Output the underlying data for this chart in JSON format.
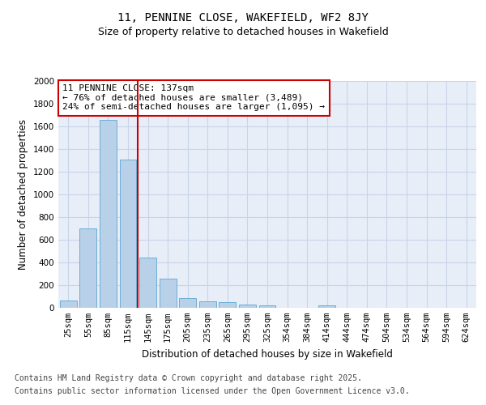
{
  "title_line1": "11, PENNINE CLOSE, WAKEFIELD, WF2 8JY",
  "title_line2": "Size of property relative to detached houses in Wakefield",
  "xlabel": "Distribution of detached houses by size in Wakefield",
  "ylabel": "Number of detached properties",
  "categories": [
    "25sqm",
    "55sqm",
    "85sqm",
    "115sqm",
    "145sqm",
    "175sqm",
    "205sqm",
    "235sqm",
    "265sqm",
    "295sqm",
    "325sqm",
    "354sqm",
    "384sqm",
    "414sqm",
    "444sqm",
    "474sqm",
    "504sqm",
    "534sqm",
    "564sqm",
    "594sqm",
    "624sqm"
  ],
  "values": [
    65,
    700,
    1660,
    1310,
    440,
    255,
    85,
    55,
    50,
    30,
    25,
    0,
    0,
    18,
    0,
    0,
    0,
    0,
    0,
    0,
    0
  ],
  "bar_color": "#b8d0e8",
  "bar_edge_color": "#6baed6",
  "vline_pos": 3.5,
  "vline_color": "#cc0000",
  "annotation_line1": "11 PENNINE CLOSE: 137sqm",
  "annotation_line2": "← 76% of detached houses are smaller (3,489)",
  "annotation_line3": "24% of semi-detached houses are larger (1,095) →",
  "annotation_box_color": "#cc0000",
  "ylim": [
    0,
    2000
  ],
  "yticks": [
    0,
    200,
    400,
    600,
    800,
    1000,
    1200,
    1400,
    1600,
    1800,
    2000
  ],
  "grid_color": "#c8d4e8",
  "bg_color": "#e8eef8",
  "footer_line1": "Contains HM Land Registry data © Crown copyright and database right 2025.",
  "footer_line2": "Contains public sector information licensed under the Open Government Licence v3.0.",
  "title_fontsize": 10,
  "subtitle_fontsize": 9,
  "axis_label_fontsize": 8.5,
  "tick_fontsize": 7.5,
  "annotation_fontsize": 8,
  "footer_fontsize": 7
}
